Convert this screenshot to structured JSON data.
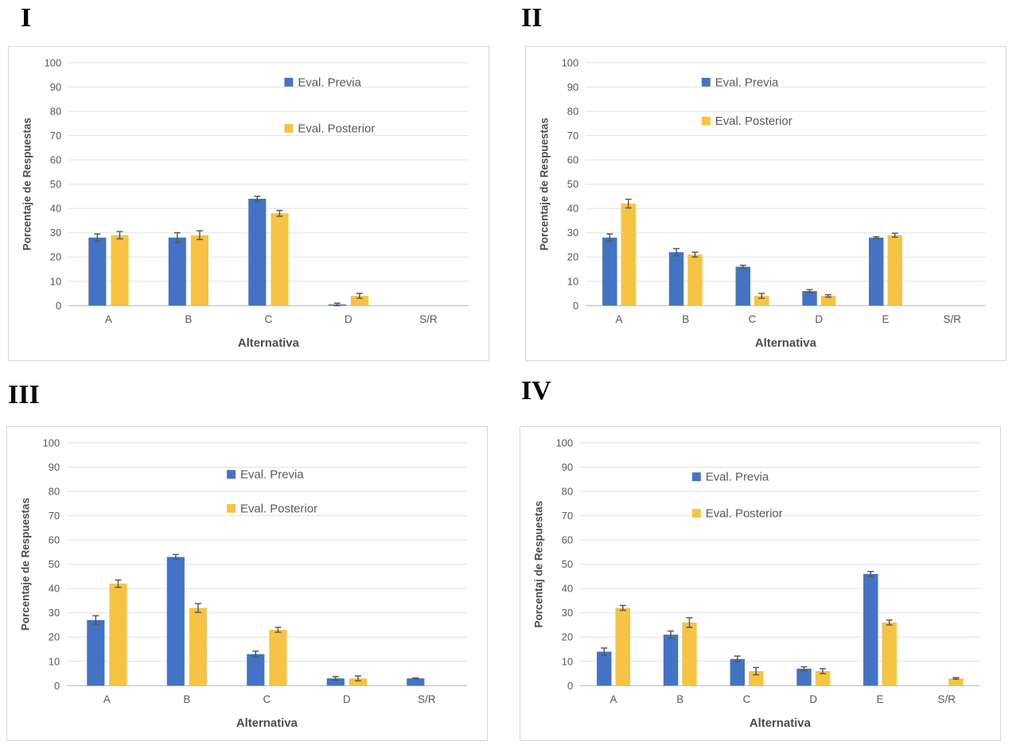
{
  "style": {
    "background": "#FFFFFF",
    "previa_color": "#4472C4",
    "posterior_color": "#F6C344",
    "grid_color": "#E2E2E2",
    "axis_line_color": "#C3C3C3",
    "text_color": "#595959",
    "title_color": "#4D4D4D",
    "error_bar_color": "#595959",
    "panel_border_color": "#D6D6D6"
  },
  "chart_data": [
    {
      "panel_label": "I",
      "type": "bar",
      "title": "",
      "xlabel": "Alternativa",
      "ylabel": "Porcentaje de Respuestas",
      "categories": [
        "A",
        "B",
        "C",
        "D",
        "S/R"
      ],
      "series": [
        {
          "key": "previa",
          "name": "Eval. Previa",
          "color": "#4472C4",
          "values": [
            28,
            28,
            44,
            0.5,
            0
          ],
          "errors": [
            1.5,
            2,
            1,
            0.5,
            0
          ]
        },
        {
          "key": "posterior",
          "name": "Eval. Posterior",
          "color": "#F6C344",
          "values": [
            29,
            29,
            38,
            4,
            0
          ],
          "errors": [
            1.5,
            1.8,
            1.2,
            1,
            0
          ]
        }
      ],
      "ylim": [
        0,
        100
      ],
      "ytick_step": 10,
      "grid": true,
      "legend_position": "inside-upper-right",
      "legend": {
        "x": 0.54,
        "y1": 0.08,
        "y2": 0.27
      }
    },
    {
      "panel_label": "II",
      "type": "bar",
      "title": "",
      "xlabel": "Alternativa",
      "ylabel": "Porcentaje de Respuestas",
      "categories": [
        "A",
        "B",
        "C",
        "D",
        "E",
        "S/R"
      ],
      "series": [
        {
          "key": "previa",
          "name": "Eval. Previa",
          "color": "#4472C4",
          "values": [
            28,
            22,
            16,
            6,
            28,
            0
          ],
          "errors": [
            1.5,
            1.5,
            0.6,
            0.6,
            0.4,
            0
          ]
        },
        {
          "key": "posterior",
          "name": "Eval. Posterior",
          "color": "#F6C344",
          "values": [
            42,
            21,
            4,
            4,
            29,
            0
          ],
          "errors": [
            1.8,
            1,
            1,
            0.5,
            0.8,
            0
          ]
        }
      ],
      "ylim": [
        0,
        100
      ],
      "ytick_step": 10,
      "grid": true,
      "legend_position": "inside-upper-center",
      "legend": {
        "x": 0.29,
        "y1": 0.08,
        "y2": 0.24
      }
    },
    {
      "panel_label": "III",
      "type": "bar",
      "title": "",
      "xlabel": "Alternativa",
      "ylabel": "Porcentaje de Respuestas",
      "categories": [
        "A",
        "B",
        "C",
        "D",
        "S/R"
      ],
      "series": [
        {
          "key": "previa",
          "name": "Eval. Previa",
          "color": "#4472C4",
          "values": [
            27,
            53,
            13,
            3,
            3
          ],
          "errors": [
            1.8,
            1,
            1.2,
            0.7,
            0.2
          ]
        },
        {
          "key": "posterior",
          "name": "Eval. Posterior",
          "color": "#F6C344",
          "values": [
            42,
            32,
            23,
            3,
            0
          ],
          "errors": [
            1.5,
            1.8,
            1,
            1,
            0
          ]
        }
      ],
      "ylim": [
        0,
        100
      ],
      "ytick_step": 10,
      "grid": true,
      "legend_position": "inside-upper-center",
      "legend": {
        "x": 0.4,
        "y1": 0.13,
        "y2": 0.27
      }
    },
    {
      "panel_label": "IV",
      "type": "bar",
      "title": "",
      "xlabel": "Alternativa",
      "ylabel": "Porcentaj de Respuestas",
      "categories": [
        "A",
        "B",
        "C",
        "D",
        "E",
        "S/R"
      ],
      "series": [
        {
          "key": "previa",
          "name": "Eval. Previa",
          "color": "#4472C4",
          "values": [
            14,
            21,
            11,
            7,
            46,
            0
          ],
          "errors": [
            1.5,
            1.5,
            1.2,
            0.8,
            1,
            0
          ]
        },
        {
          "key": "posterior",
          "name": "Eval. Posterior",
          "color": "#F6C344",
          "values": [
            32,
            26,
            6,
            6,
            26,
            3
          ],
          "errors": [
            1,
            2,
            1.5,
            1,
            1,
            0.3
          ]
        }
      ],
      "ylim": [
        0,
        100
      ],
      "ytick_step": 10,
      "grid": true,
      "legend_position": "inside-upper-center",
      "legend": {
        "x": 0.28,
        "y1": 0.14,
        "y2": 0.29
      }
    }
  ]
}
